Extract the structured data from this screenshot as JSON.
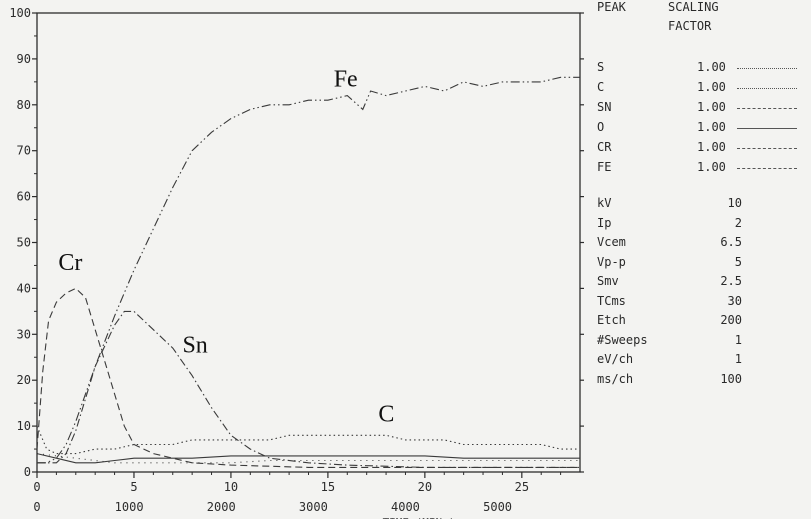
{
  "panel": {
    "header_peak": "PEAK",
    "header_scaling": "SCALING",
    "header_factor": "FACTOR"
  },
  "legend": [
    {
      "name": "S",
      "factor": "1.00",
      "style": "dotted-sparse"
    },
    {
      "name": "C",
      "factor": "1.00",
      "style": "dotted"
    },
    {
      "name": "SN",
      "factor": "1.00",
      "style": "dash-dot"
    },
    {
      "name": "O",
      "factor": "1.00",
      "style": "solid"
    },
    {
      "name": "CR",
      "factor": "1.00",
      "style": "dashed"
    },
    {
      "name": "FE",
      "factor": "1.00",
      "style": "dash-dot-dot"
    }
  ],
  "params": [
    {
      "name": "kV",
      "value": "10"
    },
    {
      "name": "Ip",
      "value": "2"
    },
    {
      "name": "Vcem",
      "value": "6.5"
    },
    {
      "name": "Vp-p",
      "value": "5"
    },
    {
      "name": "Smv",
      "value": "2.5"
    },
    {
      "name": "TCms",
      "value": "30"
    },
    {
      "name": "Etch",
      "value": "200"
    },
    {
      "name": "#Sweeps",
      "value": "1"
    },
    {
      "name": "eV/ch",
      "value": "1"
    },
    {
      "name": "ms/ch",
      "value": "100"
    }
  ],
  "chart_data": {
    "type": "line",
    "ylim": [
      0,
      100
    ],
    "yticks": [
      0,
      10,
      20,
      30,
      40,
      50,
      60,
      70,
      80,
      90,
      100
    ],
    "xlim": [
      0,
      28
    ],
    "xticks_top": [
      0,
      5,
      10,
      15,
      20,
      25
    ],
    "xticks_bottom": [
      "0",
      "1000",
      "2000",
      "3000",
      "4000",
      "5000"
    ],
    "xlabel": "TIME (MIN.)",
    "grid": false,
    "annotations": [
      {
        "text": "Fe",
        "x": 15.3,
        "y": 84
      },
      {
        "text": "Cr",
        "x": 1.1,
        "y": 44
      },
      {
        "text": "Sn",
        "x": 7.5,
        "y": 26
      },
      {
        "text": "C",
        "x": 17.6,
        "y": 11
      }
    ],
    "series": [
      {
        "name": "FE",
        "style": "dash-dot-dot",
        "x": [
          0,
          0.5,
          1,
          1.5,
          2,
          3,
          4,
          5,
          6,
          7,
          8,
          9,
          10,
          11,
          12,
          13,
          14,
          15,
          16,
          16.8,
          17.2,
          18,
          19,
          20,
          21,
          22,
          23,
          24,
          25,
          26,
          27,
          28
        ],
        "y": [
          2,
          2,
          3,
          6,
          11,
          23,
          34,
          44,
          53,
          62,
          70,
          74,
          77,
          79,
          80,
          80,
          81,
          81,
          82,
          79,
          83,
          82,
          83,
          84,
          83,
          85,
          84,
          85,
          85,
          85,
          86,
          86
        ]
      },
      {
        "name": "CR",
        "style": "dashed",
        "x": [
          0,
          0.3,
          0.6,
          1,
          1.5,
          2,
          2.5,
          3,
          3.5,
          4,
          4.5,
          5,
          6,
          7,
          8,
          10,
          14,
          20,
          28
        ],
        "y": [
          5,
          22,
          33,
          37,
          39,
          40,
          38,
          31,
          24,
          17,
          10,
          6,
          4,
          3,
          2,
          1.5,
          1,
          1,
          1
        ]
      },
      {
        "name": "SN",
        "style": "dash-dot",
        "x": [
          0,
          1,
          1.5,
          2,
          2.5,
          3,
          4,
          4.5,
          5,
          6,
          7,
          8,
          9,
          10,
          11,
          12,
          14,
          16,
          20,
          28
        ],
        "y": [
          2,
          2,
          4,
          9,
          16,
          23,
          32,
          35,
          35,
          31,
          27,
          21,
          14,
          8,
          5,
          3,
          2,
          1.5,
          1,
          1
        ]
      },
      {
        "name": "C",
        "style": "dotted",
        "x": [
          0,
          0.5,
          1,
          2,
          3,
          4,
          5,
          6,
          7,
          8,
          9,
          10,
          11,
          12,
          13,
          14,
          15,
          16,
          17,
          18,
          19,
          20,
          21,
          22,
          23,
          24,
          25,
          26,
          27,
          28
        ],
        "y": [
          10,
          5,
          4,
          4,
          5,
          5,
          6,
          6,
          6,
          7,
          7,
          7,
          7,
          7,
          8,
          8,
          8,
          8,
          8,
          8,
          7,
          7,
          7,
          6,
          6,
          6,
          6,
          6,
          5,
          5
        ]
      },
      {
        "name": "O",
        "style": "solid",
        "x": [
          0,
          1,
          2,
          3,
          4,
          5,
          6,
          8,
          10,
          12,
          14,
          16,
          18,
          20,
          22,
          24,
          26,
          28
        ],
        "y": [
          4,
          3,
          2,
          2,
          2.5,
          3,
          3,
          3,
          3.5,
          3.5,
          3.5,
          3.5,
          3.5,
          3.5,
          3,
          3,
          3,
          3
        ]
      },
      {
        "name": "S",
        "style": "dotted-sparse",
        "x": [
          0,
          2,
          4,
          6,
          8,
          10,
          12,
          14,
          16,
          18,
          20,
          22,
          24,
          26,
          28
        ],
        "y": [
          4,
          3,
          2,
          2,
          2,
          2,
          2.5,
          2.5,
          2.5,
          2.5,
          2.5,
          2.5,
          2.5,
          2.5,
          2.5
        ]
      }
    ]
  }
}
